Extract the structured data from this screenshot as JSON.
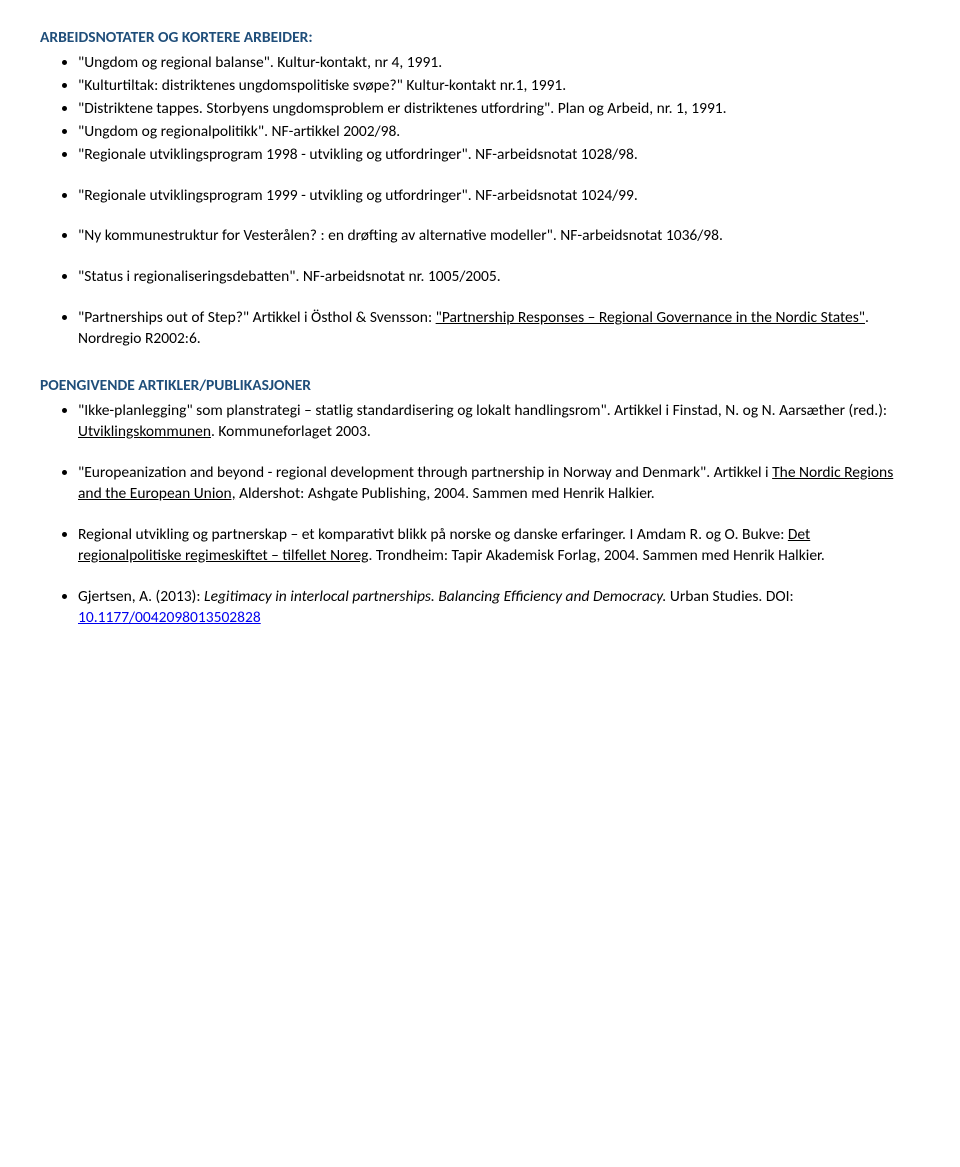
{
  "section1": {
    "heading": "ARBEIDSNOTATER OG KORTERE ARBEIDER:",
    "items_a": [
      "\"Ungdom og regional balanse\". Kultur-kontakt, nr 4, 1991.",
      "\"Kulturtiltak: distriktenes ungdomspolitiske svøpe?\" Kultur-kontakt nr.1, 1991.",
      "\"Distriktene tappes. Storbyens ungdomsproblem er distriktenes utfordring\". Plan og Arbeid, nr. 1, 1991.",
      "\"Ungdom og regionalpolitikk\". NF-artikkel 2002/98.",
      "\"Regionale utviklingsprogram 1998 - utvikling og utfordringer\". NF-arbeidsnotat 1028/98."
    ],
    "items_b": [
      "\"Regionale utviklingsprogram 1999 - utvikling og utfordringer\". NF-arbeidsnotat 1024/99.",
      "\"Ny kommunestruktur for Vesterålen? : en drøfting av alternative modeller\". NF-arbeidsnotat 1036/98.",
      "\"Status i regionaliseringsdebatten\". NF-arbeidsnotat nr. 1005/2005."
    ],
    "partnerships": {
      "pre": "\"Partnerships out of Step?\" Artikkel i Östhol & Svensson: ",
      "uline": "\"Partnership Responses – Regional Governance in the Nordic States\"",
      "post": ". Nordregio R2002:6."
    }
  },
  "section2": {
    "heading": "POENGIVENDE ARTIKLER/PUBLIKASJONER",
    "ikke": {
      "pre": "\"Ikke-planlegging\" som planstrategi – statlig standardisering og lokalt handlingsrom\". Artikkel i Finstad, N. og N. Aarsæther (red.): ",
      "uline": "Utviklingskommunen",
      "post": ". Kommuneforlaget 2003."
    },
    "euro": {
      "pre": "\"Europeanization and beyond - regional development through partnership in Norway and Denmark\". Artikkel i ",
      "uline": "The Nordic Regions and the European Union,",
      "post": " Aldershot: Ashgate Publishing, 2004. Sammen med Henrik Halkier."
    },
    "regional": {
      "pre": "Regional utvikling og partnerskap – et komparativt blikk på norske og danske erfaringer. I Amdam R. og O. Bukve: ",
      "uline": "Det regionalpolitiske regimeskiftet – tilfellet Noreg",
      "post": ". Trondheim: Tapir Akademisk Forlag, 2004. Sammen med Henrik Halkier."
    },
    "gjertsen": {
      "pre_plain": "Gjertsen, A. (2013): ",
      "italic1": "Legitimacy in interlocal partnerships.",
      "mid_plain": " ",
      "italic2": "Balancing Efficiency and Democracy.",
      "post_plain": " Urban Studies. DOI: ",
      "doi": "10.1177/0042098013502828"
    }
  }
}
